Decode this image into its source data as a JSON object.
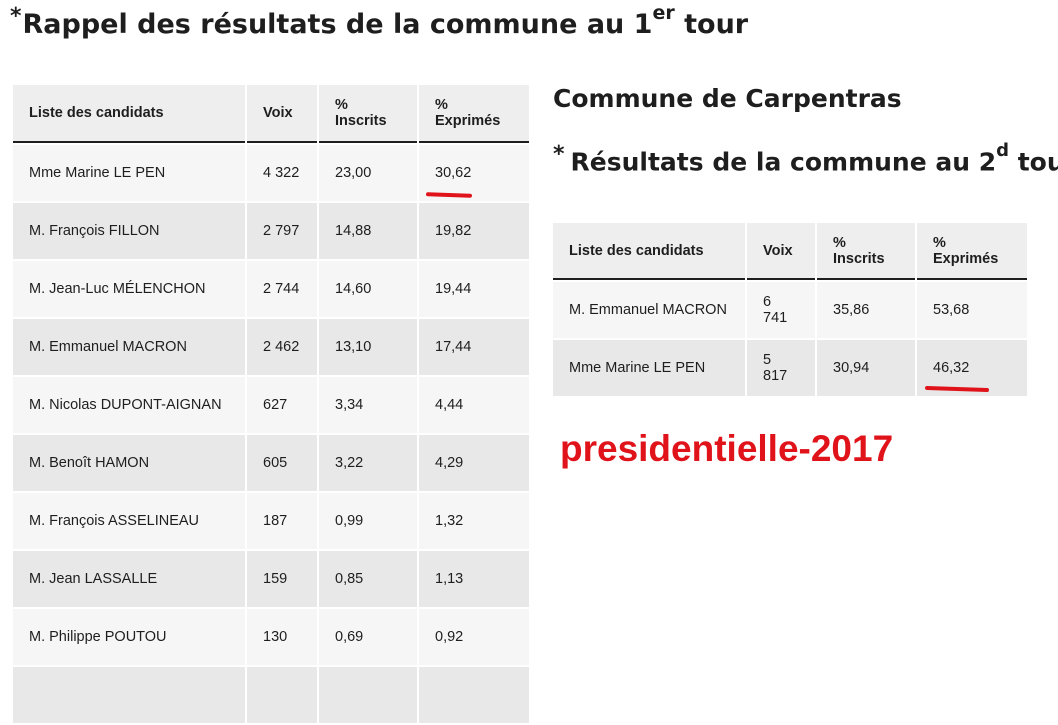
{
  "heading_first": {
    "star": "*",
    "text": "Rappel des résultats de la commune au 1",
    "sup": "er",
    "tail": " tour"
  },
  "commune_title": "Commune de Carpentras",
  "heading_second": {
    "star": "*",
    "text": "Résultats de la commune au 2",
    "sup": "d",
    "tail": " tour"
  },
  "tag_text": "presidentielle-2017",
  "accent_color": "#e0131b",
  "table_first": {
    "headers": [
      "Liste des candidats",
      "Voix",
      "% Inscrits",
      "% Exprimés"
    ],
    "rows": [
      [
        "Mme Marine LE PEN",
        "4 322",
        "23,00",
        "30,62"
      ],
      [
        "M. François FILLON",
        "2 797",
        "14,88",
        "19,82"
      ],
      [
        "M. Jean-Luc MÉLENCHON",
        "2 744",
        "14,60",
        "19,44"
      ],
      [
        "M. Emmanuel MACRON",
        "2 462",
        "13,10",
        "17,44"
      ],
      [
        "M. Nicolas DUPONT-AIGNAN",
        "627",
        "3,34",
        "4,44"
      ],
      [
        "M. Benoît HAMON",
        "605",
        "3,22",
        "4,29"
      ],
      [
        "M. François ASSELINEAU",
        "187",
        "0,99",
        "1,32"
      ],
      [
        "M. Jean LASSALLE",
        "159",
        "0,85",
        "1,13"
      ],
      [
        "M. Philippe POUTOU",
        "130",
        "0,69",
        "0,92"
      ],
      [
        "",
        "",
        "",
        ""
      ]
    ]
  },
  "table_second": {
    "headers": [
      "Liste des candidats",
      "Voix",
      "% Inscrits",
      "% Exprimés"
    ],
    "rows": [
      [
        "M. Emmanuel MACRON",
        "6 741",
        "35,86",
        "53,68"
      ],
      [
        "Mme Marine LE PEN",
        "5 817",
        "30,94",
        "46,32"
      ]
    ]
  }
}
